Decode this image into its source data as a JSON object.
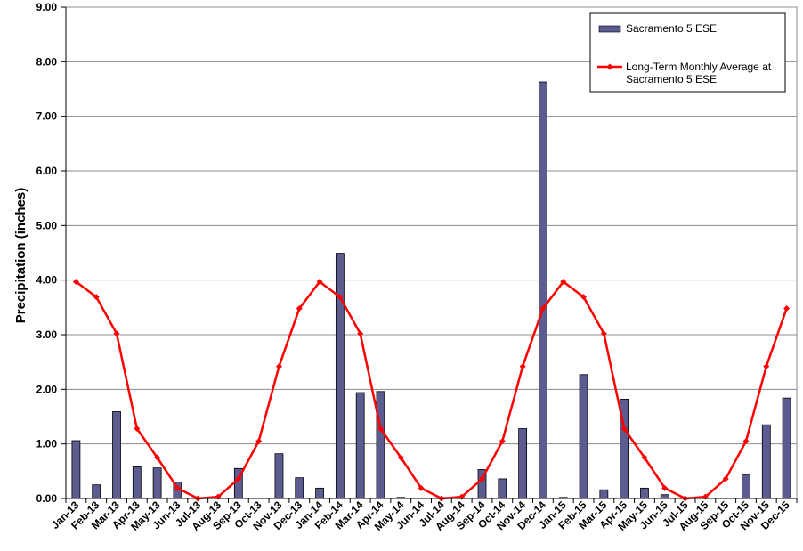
{
  "chart_data": {
    "type": "bar",
    "title": "",
    "xlabel": "",
    "ylabel": "Precipitation (inches)",
    "ylim": [
      0,
      9
    ],
    "y_ticks": [
      "0.00",
      "1.00",
      "2.00",
      "3.00",
      "4.00",
      "5.00",
      "6.00",
      "7.00",
      "8.00",
      "9.00"
    ],
    "grid": true,
    "legend_position": "top-right",
    "categories": [
      "Jan-13",
      "Feb-13",
      "Mar-13",
      "Apr-13",
      "May-13",
      "Jun-13",
      "Jul-13",
      "Aug-13",
      "Sep-13",
      "Oct-13",
      "Nov-13",
      "Dec-13",
      "Jan-14",
      "Feb-14",
      "Mar-14",
      "Apr-14",
      "May-14",
      "Jun-14",
      "Jul-14",
      "Aug-14",
      "Sep-14",
      "Oct-14",
      "Nov-14",
      "Dec-14",
      "Jan-15",
      "Feb-15",
      "Mar-15",
      "Apr-15",
      "May-15",
      "Jun-15",
      "Jul-15",
      "Aug-15",
      "Sep-15",
      "Oct-15",
      "Nov-15",
      "Dec-15"
    ],
    "series": [
      {
        "name": "Sacramento 5 ESE",
        "kind": "bar",
        "color": "#5c5c91",
        "values": [
          1.06,
          0.25,
          1.59,
          0.58,
          0.56,
          0.3,
          0.0,
          0.0,
          0.55,
          0.0,
          0.82,
          0.38,
          0.19,
          4.49,
          1.94,
          1.96,
          0.02,
          0.0,
          0.0,
          0.0,
          0.53,
          0.36,
          1.28,
          7.63,
          0.02,
          2.27,
          0.16,
          1.82,
          0.19,
          0.07,
          0.0,
          0.0,
          0.0,
          0.43,
          1.35,
          1.84
        ]
      },
      {
        "name": "Long-Term Monthly Average at\nSacramento 5 ESE",
        "legend_lines": [
          "Long-Term Monthly Average at",
          "Sacramento 5 ESE"
        ],
        "kind": "line",
        "color": "#ff0000",
        "values": [
          3.97,
          3.69,
          3.02,
          1.28,
          0.75,
          0.19,
          0.0,
          0.03,
          0.36,
          1.05,
          2.42,
          3.48,
          3.97,
          3.69,
          3.02,
          1.28,
          0.75,
          0.19,
          0.0,
          0.03,
          0.36,
          1.05,
          2.42,
          3.48,
          3.97,
          3.69,
          3.02,
          1.28,
          0.75,
          0.19,
          0.0,
          0.03,
          0.36,
          1.05,
          2.42,
          3.48
        ]
      }
    ]
  }
}
